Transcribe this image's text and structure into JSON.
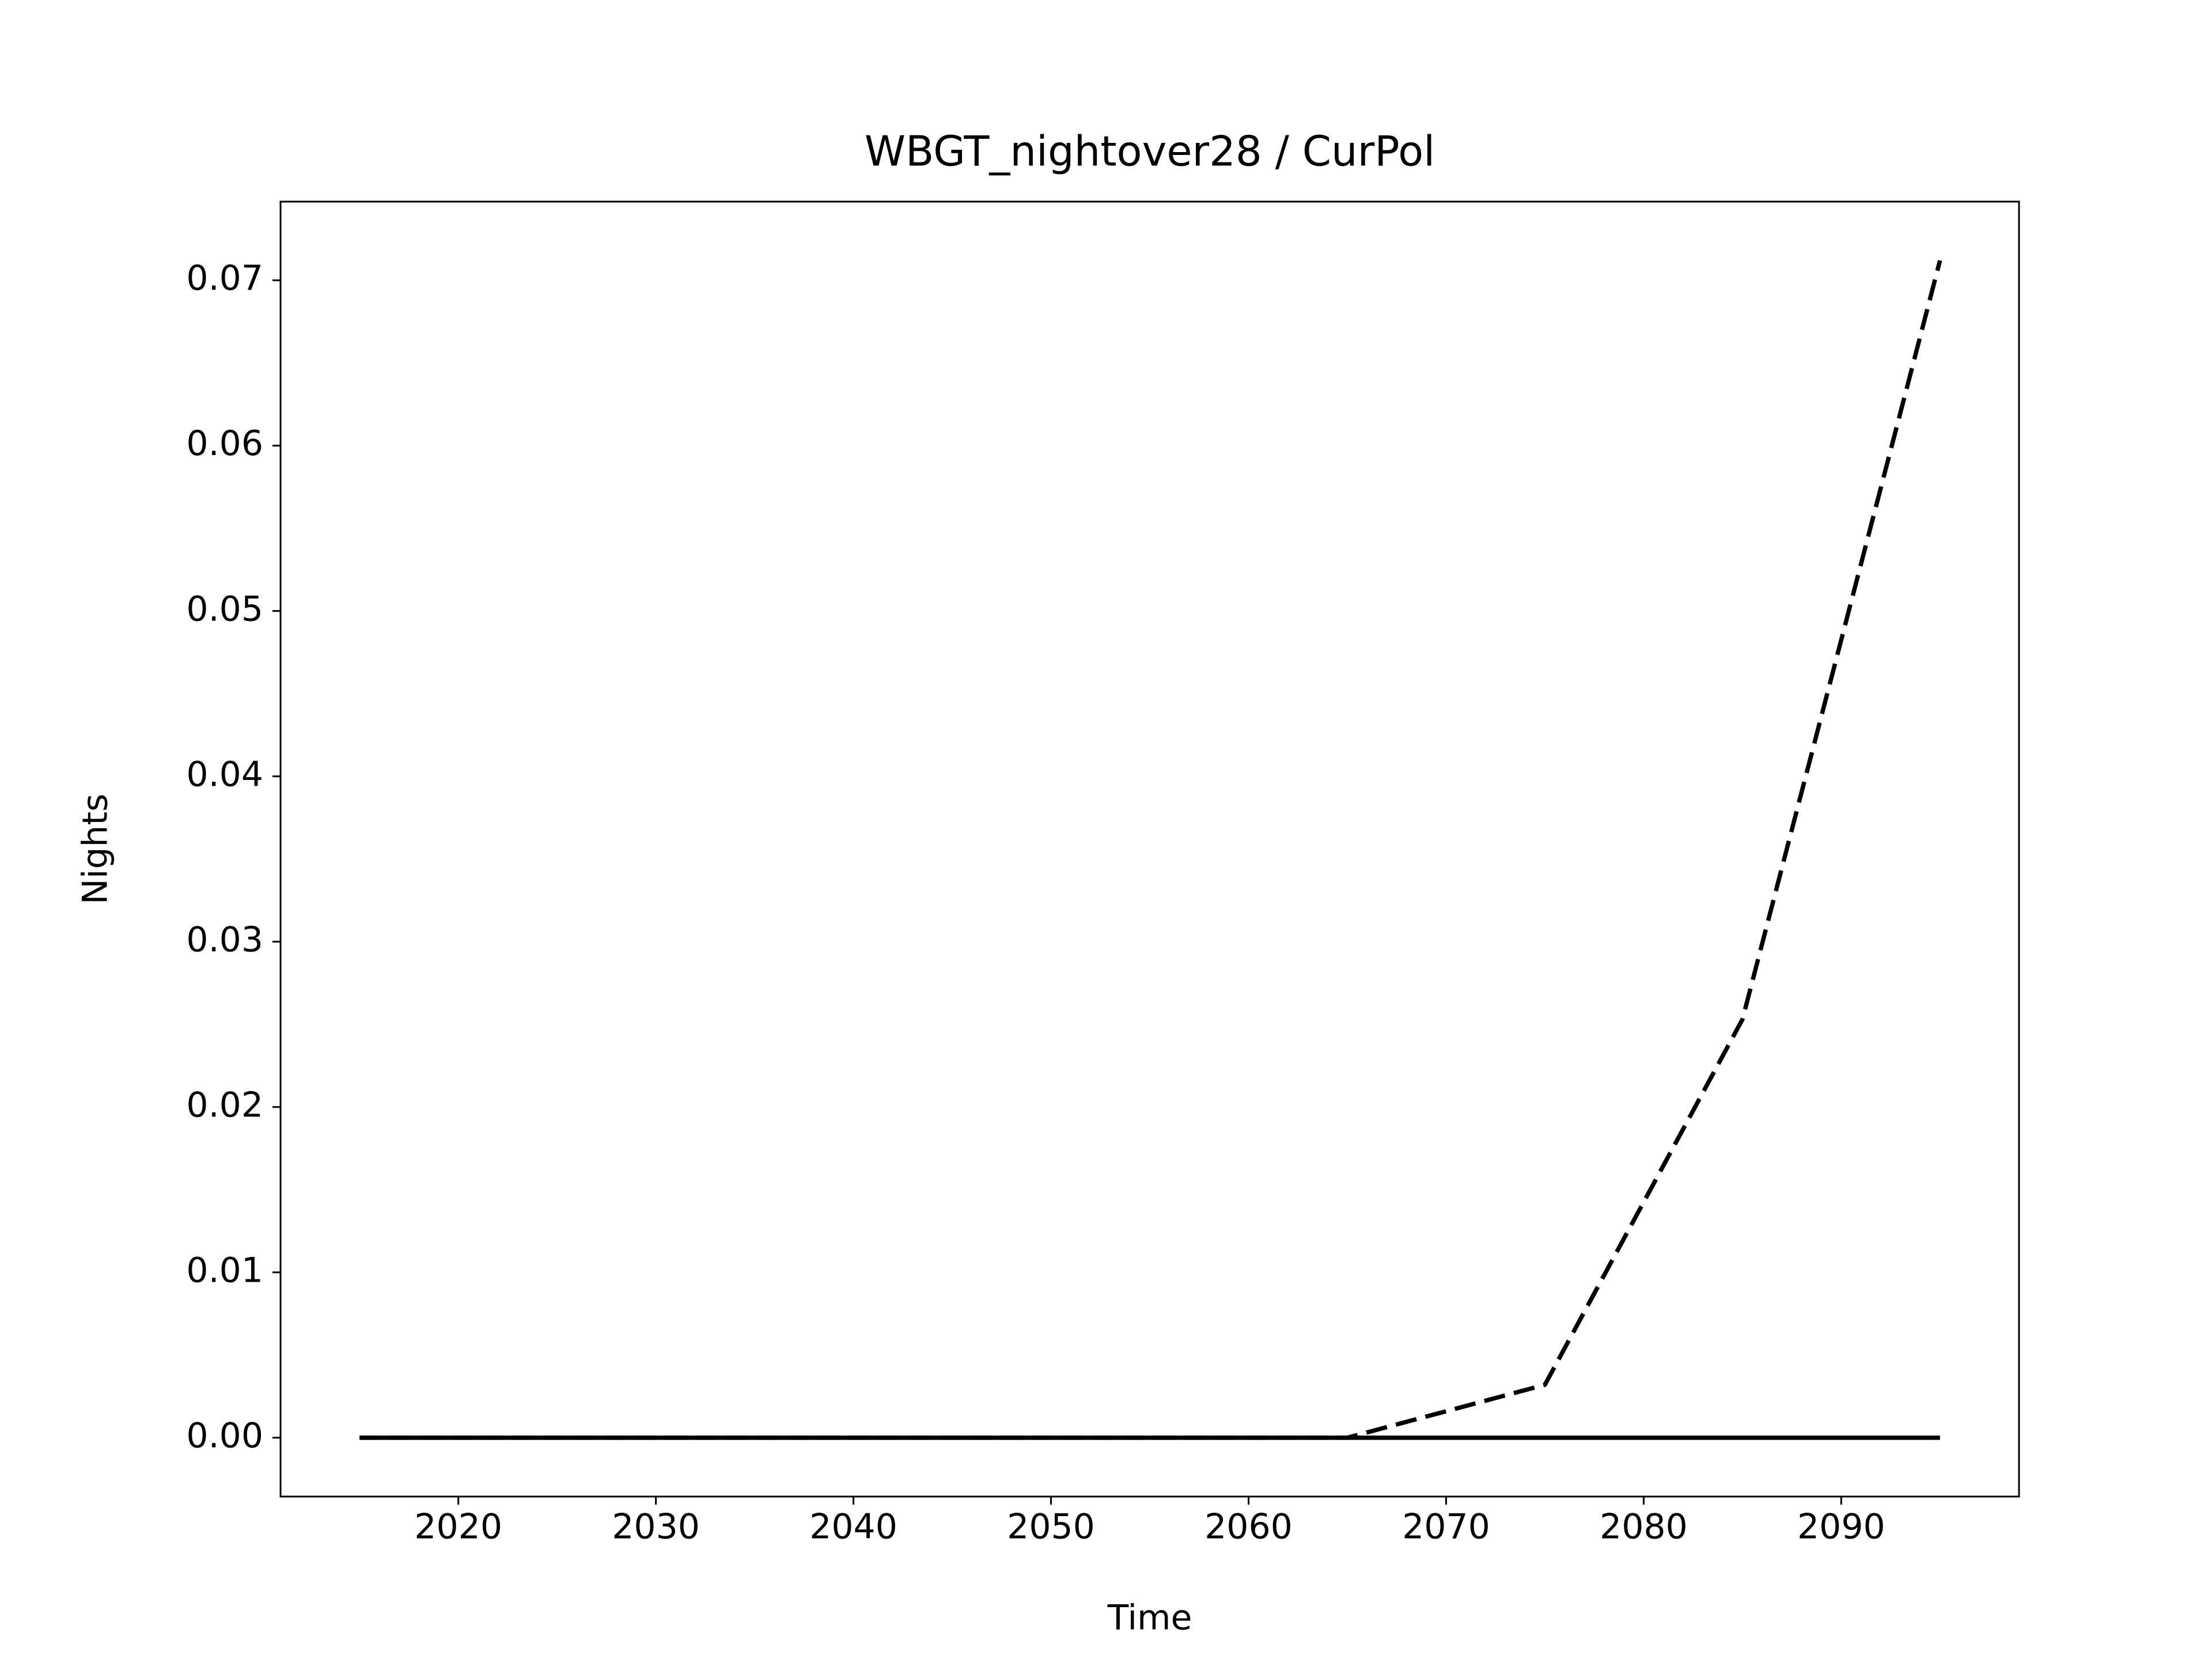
{
  "chart_data": {
    "type": "line",
    "title": "WBGT_nightover28 / CurPol",
    "xlabel": "Time",
    "ylabel": "Nights",
    "x": [
      2015,
      2025,
      2035,
      2045,
      2055,
      2065,
      2075,
      2085,
      2095
    ],
    "series": [
      {
        "color": "#000000",
        "linestyle": "solid",
        "values": [
          0,
          0,
          0,
          0,
          0,
          0,
          0,
          0,
          0
        ]
      },
      {
        "color": "#000000",
        "linestyle": "dashed",
        "values": [
          0,
          0,
          0,
          0,
          0,
          0,
          0.0032,
          0.0253,
          0.0712
        ]
      }
    ],
    "xlim": [
      2011,
      2099
    ],
    "ylim": [
      -0.00356,
      0.07476
    ],
    "xticks": [
      2020,
      2030,
      2040,
      2050,
      2060,
      2070,
      2080,
      2090
    ],
    "yticks": [
      {
        "value": 0,
        "label": "0.00"
      },
      0.01,
      0.02,
      0.03,
      0.04,
      0.05,
      0.06,
      0.07
    ],
    "grid": false
  }
}
